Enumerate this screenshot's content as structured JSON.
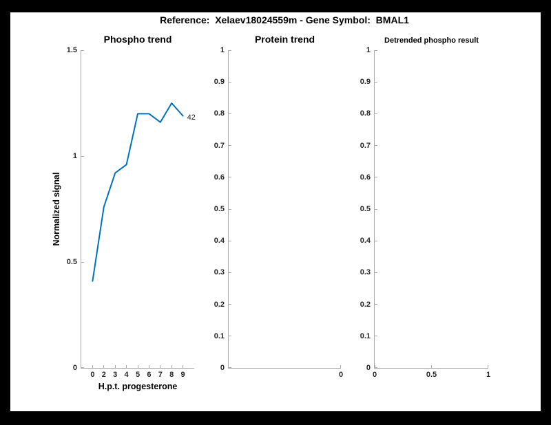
{
  "figure": {
    "title": "Reference:  Xelaev18024559m - Gene Symbol:  BMAL1",
    "background_color": "#000000",
    "canvas_color": "#ffffff"
  },
  "colors": {
    "line": "#0072BD",
    "axis": "#aaaaaa",
    "tick_label": "#262626",
    "text": "#000000"
  },
  "chart_data": [
    {
      "type": "line",
      "title": "Phospho trend",
      "xlabel": "H.p.t. progesterone",
      "ylabel": "Normalized signal",
      "xlim": [
        0,
        10
      ],
      "ylim": [
        0,
        1.5
      ],
      "grid": false,
      "legend": null,
      "x_ticks": [
        {
          "label": "0",
          "pos": 1
        },
        {
          "label": "2",
          "pos": 2
        },
        {
          "label": "3",
          "pos": 3
        },
        {
          "label": "4",
          "pos": 4
        },
        {
          "label": "5",
          "pos": 5
        },
        {
          "label": "6",
          "pos": 6
        },
        {
          "label": "7",
          "pos": 7
        },
        {
          "label": "8",
          "pos": 8
        },
        {
          "label": "9",
          "pos": 9
        }
      ],
      "y_ticks": [
        {
          "label": "0",
          "value": 0
        },
        {
          "label": "0.5",
          "value": 0.5
        },
        {
          "label": "1",
          "value": 1
        },
        {
          "label": "1.5",
          "value": 1.5
        }
      ],
      "series": {
        "name": "phospho normalized signal",
        "x": [
          1,
          2,
          3,
          4,
          5,
          6,
          7,
          8,
          9
        ],
        "x_hour_labels": [
          "0",
          "2",
          "3",
          "4",
          "5",
          "6",
          "7",
          "8",
          "9"
        ],
        "y": [
          0.41,
          0.76,
          0.92,
          0.96,
          1.2,
          1.2,
          1.16,
          1.25,
          1.19
        ]
      },
      "annotation": "42",
      "line_color": "#0072BD"
    },
    {
      "type": "line",
      "title": "Protein trend",
      "xlabel": "",
      "ylabel": "",
      "xlim": [
        -1,
        0
      ],
      "ylim": [
        0,
        1
      ],
      "grid": false,
      "legend": null,
      "x_ticks": [
        {
          "label": "0",
          "pos": 0
        }
      ],
      "y_ticks": [
        {
          "label": "0",
          "value": 0
        },
        {
          "label": "0.1",
          "value": 0.1
        },
        {
          "label": "0.2",
          "value": 0.2
        },
        {
          "label": "0.3",
          "value": 0.3
        },
        {
          "label": "0.4",
          "value": 0.4
        },
        {
          "label": "0.5",
          "value": 0.5
        },
        {
          "label": "0.6",
          "value": 0.6
        },
        {
          "label": "0.7",
          "value": 0.7
        },
        {
          "label": "0.8",
          "value": 0.8
        },
        {
          "label": "0.9",
          "value": 0.9
        },
        {
          "label": "1",
          "value": 1
        }
      ],
      "series": {
        "name": "protein",
        "x": [],
        "y": []
      },
      "annotation": null,
      "line_color": "#0072BD"
    },
    {
      "type": "line",
      "title": "Detrended phospho result",
      "xlabel": "",
      "ylabel": "",
      "xlim": [
        0,
        1
      ],
      "ylim": [
        0,
        1
      ],
      "grid": false,
      "legend": null,
      "x_ticks": [
        {
          "label": "0",
          "pos": 0
        },
        {
          "label": "0.5",
          "pos": 0.5
        },
        {
          "label": "1",
          "pos": 1
        }
      ],
      "y_ticks": [
        {
          "label": "0",
          "value": 0
        },
        {
          "label": "0.1",
          "value": 0.1
        },
        {
          "label": "0.2",
          "value": 0.2
        },
        {
          "label": "0.3",
          "value": 0.3
        },
        {
          "label": "0.4",
          "value": 0.4
        },
        {
          "label": "0.5",
          "value": 0.5
        },
        {
          "label": "0.6",
          "value": 0.6
        },
        {
          "label": "0.7",
          "value": 0.7
        },
        {
          "label": "0.8",
          "value": 0.8
        },
        {
          "label": "0.9",
          "value": 0.9
        },
        {
          "label": "1",
          "value": 1
        }
      ],
      "series": {
        "name": "detrended phospho",
        "x": [],
        "y": []
      },
      "annotation": null,
      "line_color": "#0072BD"
    }
  ]
}
